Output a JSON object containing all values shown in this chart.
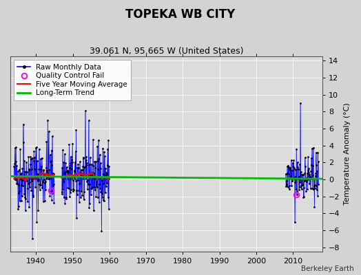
{
  "title": "TOPEKA WB CITY",
  "subtitle": "39.061 N, 95.665 W (United States)",
  "ylabel": "Temperature Anomaly (°C)",
  "credit": "Berkeley Earth",
  "xlim": [
    1933,
    2018
  ],
  "ylim": [
    -8.5,
    14.5
  ],
  "yticks": [
    -8,
    -6,
    -4,
    -2,
    0,
    2,
    4,
    6,
    8,
    10,
    12,
    14
  ],
  "xticks": [
    1940,
    1950,
    1960,
    1970,
    1980,
    1990,
    2000,
    2010
  ],
  "fig_bg": "#d3d3d3",
  "plot_bg": "#dcdcdc",
  "raw_line_color": "#0000ff",
  "dot_color": "#000000",
  "ma_color": "#ff0000",
  "trend_color": "#00bb00",
  "qc_color": "#ff00ff",
  "grid_color": "#ffffff",
  "title_fontsize": 12,
  "subtitle_fontsize": 9,
  "tick_fontsize": 8,
  "ylabel_fontsize": 8,
  "legend_fontsize": 7.5,
  "credit_fontsize": 7.5,
  "period1_start": 1934,
  "period1_end": 1944,
  "period2_start": 1947,
  "period2_end": 1959,
  "period3_start": 2008,
  "period3_end": 2016,
  "seed": 42,
  "qc_points": [
    [
      1944.0,
      -1.3
    ],
    [
      2010.8,
      -1.8
    ]
  ],
  "trend_x": [
    1933,
    2018
  ],
  "trend_y": [
    0.38,
    0.08
  ]
}
